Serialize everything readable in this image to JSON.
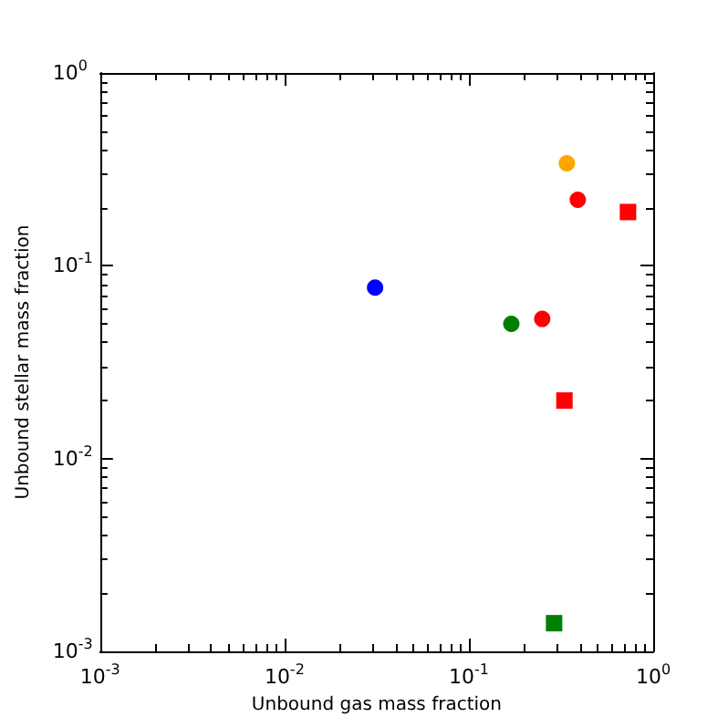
{
  "chart_data": {
    "type": "scatter",
    "xlabel": "Unbound gas mass fraction",
    "ylabel": "Unbound stellar mass fraction",
    "log": "xy",
    "grid": false,
    "xlim": [
      0.001,
      1
    ],
    "ylim": [
      0.001,
      1
    ],
    "xticks": [
      {
        "value": 0.001,
        "label": "10$^{-3}$"
      },
      {
        "value": 0.01,
        "label": "10$^{-2}$"
      },
      {
        "value": 0.1,
        "label": "10$^{-1}$"
      },
      {
        "value": 1,
        "label": "10$^{0}$"
      }
    ],
    "yticks": [
      {
        "value": 0.001,
        "label": "10$^{-3}$"
      },
      {
        "value": 0.01,
        "label": "10$^{-2}$"
      },
      {
        "value": 0.1,
        "label": "10$^{-1}$"
      },
      {
        "value": 1,
        "label": "10$^{0}$"
      }
    ],
    "series": [
      {
        "color": "#0000ff",
        "marker": "circle",
        "x": [
          0.031
        ],
        "values": [
          0.077
        ]
      },
      {
        "color": "#008000",
        "marker": "circle",
        "x": [
          0.17
        ],
        "values": [
          0.05
        ]
      },
      {
        "color": "#ff0000",
        "marker": "circle",
        "x": [
          0.25,
          0.39
        ],
        "values": [
          0.053,
          0.22
        ]
      },
      {
        "color": "#ffa500",
        "marker": "circle",
        "x": [
          0.34
        ],
        "values": [
          0.34
        ]
      },
      {
        "color": "#ff0000",
        "marker": "square",
        "x": [
          0.73,
          0.33
        ],
        "values": [
          0.19,
          0.02
        ]
      },
      {
        "color": "#008000",
        "marker": "square",
        "x": [
          0.29
        ],
        "values": [
          0.0014
        ]
      }
    ]
  }
}
